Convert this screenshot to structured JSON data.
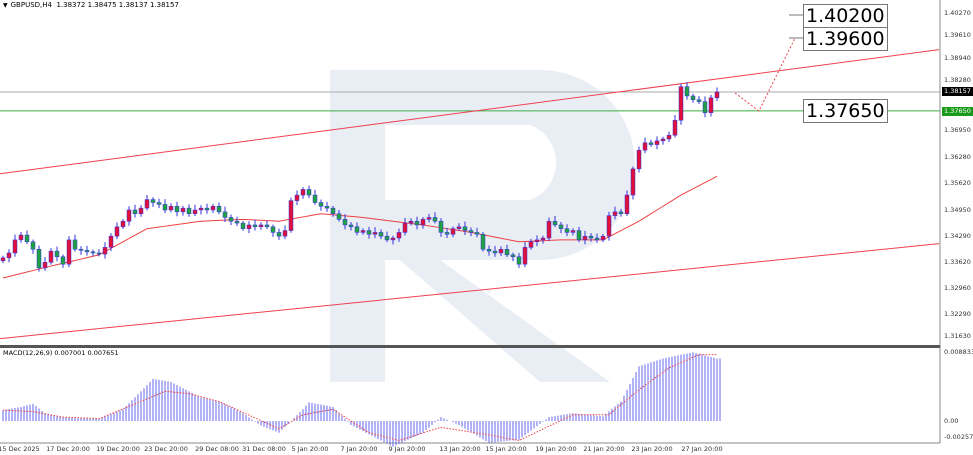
{
  "header": {
    "symbol": "GBPUSD,H4",
    "ohlc": "1.38372 1.38475 1.38137 1.38157"
  },
  "macd_header": {
    "label": "MACD(12,26,9) 0.007001 0.007651"
  },
  "price_axis": [
    "1.40270",
    "1.39610",
    "1.38940",
    "1.38280",
    "1.36950",
    "1.36280",
    "1.35620",
    "1.34950",
    "1.34290",
    "1.33620",
    "1.32960",
    "1.32290",
    "1.31630"
  ],
  "macd_axis": [
    "0.008833",
    "0.00",
    "-0.002572"
  ],
  "current_price": {
    "label": "1.38157",
    "value": 1.38157,
    "color": "#000000"
  },
  "support_level": {
    "label": "1.37650",
    "value": 1.3765,
    "color": "#1a9a1a"
  },
  "target_labels": [
    "1.40200",
    "1.39600",
    "1.37650"
  ],
  "colors": {
    "bull_body": "#e0103a",
    "bear_body": "#20a040",
    "wick": "#3333dd",
    "ma": "#f04040",
    "trendline": "#f04050",
    "macd_hist": "#6666ee",
    "macd_signal": "#f04040",
    "watermark": "#e9edf4"
  },
  "chart_data": {
    "type": "candlestick",
    "timeframe": "H4",
    "date_labels": [
      "15 Dec 2025",
      "17 Dec 20:00",
      "19 Dec 20:00",
      "23 Dec 20:00",
      "29 Dec 08:00",
      "31 Dec 08:00",
      "5 Jan 20:00",
      "7 Jan 20:00",
      "9 Jan 20:00",
      "13 Jan 20:00",
      "15 Jan 20:00",
      "19 Jan 20:00",
      "21 Jan 20:00",
      "23 Jan 20:00",
      "27 Jan 20:00"
    ],
    "ylim": [
      1.3163,
      1.4027
    ],
    "closes": [
      1.3372,
      1.3385,
      1.342,
      1.3433,
      1.3415,
      1.3395,
      1.3345,
      1.336,
      1.339,
      1.3375,
      1.3355,
      1.342,
      1.3395,
      1.3392,
      1.3388,
      1.3385,
      1.3382,
      1.34,
      1.343,
      1.3455,
      1.347,
      1.35,
      1.349,
      1.3505,
      1.3528,
      1.352,
      1.3515,
      1.35,
      1.351,
      1.3495,
      1.3505,
      1.349,
      1.35,
      1.3505,
      1.35,
      1.351,
      1.3495,
      1.348,
      1.347,
      1.3465,
      1.345,
      1.346,
      1.3455,
      1.346,
      1.3455,
      1.344,
      1.343,
      1.3445,
      1.3525,
      1.354,
      1.3555,
      1.354,
      1.352,
      1.351,
      1.3505,
      1.349,
      1.3475,
      1.346,
      1.3455,
      1.344,
      1.3445,
      1.3435,
      1.344,
      1.343,
      1.342,
      1.3425,
      1.344,
      1.3465,
      1.347,
      1.346,
      1.3475,
      1.348,
      1.347,
      1.344,
      1.3435,
      1.345,
      1.3455,
      1.3445,
      1.344,
      1.3435,
      1.3395,
      1.339,
      1.3385,
      1.3395,
      1.338,
      1.3375,
      1.3355,
      1.34,
      1.3415,
      1.342,
      1.3425,
      1.347,
      1.346,
      1.345,
      1.344,
      1.3445,
      1.342,
      1.343,
      1.3425,
      1.342,
      1.343,
      1.3485,
      1.3495,
      1.349,
      1.354,
      1.361,
      1.366,
      1.368,
      1.3675,
      1.3685,
      1.369,
      1.37,
      1.374,
      1.383,
      1.3805,
      1.3795,
      1.379,
      1.376,
      1.38,
      1.38157
    ],
    "moving_average": [
      [
        0,
        1.3318
      ],
      [
        8,
        1.335
      ],
      [
        16,
        1.338
      ],
      [
        24,
        1.345
      ],
      [
        33,
        1.347
      ],
      [
        40,
        1.3475
      ],
      [
        46,
        1.347
      ],
      [
        53,
        1.349
      ],
      [
        60,
        1.348
      ],
      [
        70,
        1.346
      ],
      [
        78,
        1.344
      ],
      [
        86,
        1.3415
      ],
      [
        93,
        1.342
      ],
      [
        100,
        1.342
      ],
      [
        106,
        1.347
      ],
      [
        113,
        1.354
      ],
      [
        119,
        1.359
      ]
    ],
    "trendlines": [
      {
        "from": [
          0,
          1.3597
        ],
        "to": [
          156,
          1.3929
        ]
      },
      {
        "from": [
          0,
          1.3156
        ],
        "to": [
          156,
          1.341
        ]
      }
    ],
    "forecast": [
      [
        122,
        1.3813
      ],
      [
        126,
        1.3765
      ],
      [
        132,
        1.396
      ]
    ],
    "macd_histogram": [
      [
        0,
        0.0014
      ],
      [
        3,
        0.0018
      ],
      [
        5,
        0.0022
      ],
      [
        7,
        0.001
      ],
      [
        10,
        0.0005
      ],
      [
        16,
        0.0003
      ],
      [
        20,
        0.0015
      ],
      [
        23,
        0.0038
      ],
      [
        25,
        0.0054
      ],
      [
        28,
        0.005
      ],
      [
        33,
        0.003
      ],
      [
        36,
        0.0025
      ],
      [
        40,
        0.001
      ],
      [
        43,
        -0.0006
      ],
      [
        46,
        -0.0015
      ],
      [
        50,
        0.0015
      ],
      [
        51,
        0.0024
      ],
      [
        55,
        0.0018
      ],
      [
        58,
        -0.0005
      ],
      [
        63,
        -0.0025
      ],
      [
        65,
        -0.0033
      ],
      [
        70,
        -0.0015
      ],
      [
        73,
        0.0005
      ],
      [
        76,
        -0.0005
      ],
      [
        81,
        -0.0028
      ],
      [
        86,
        -0.0024
      ],
      [
        91,
        0.0005
      ],
      [
        95,
        0.001
      ],
      [
        100,
        0.0006
      ],
      [
        103,
        0.0025
      ],
      [
        106,
        0.007
      ],
      [
        110,
        0.008
      ],
      [
        115,
        0.0088
      ],
      [
        119,
        0.008
      ]
    ],
    "macd_signal": [
      [
        0,
        0.0014
      ],
      [
        5,
        0.0012
      ],
      [
        10,
        0.0005
      ],
      [
        16,
        0.0003
      ],
      [
        23,
        0.0025
      ],
      [
        27,
        0.0038
      ],
      [
        31,
        0.0035
      ],
      [
        36,
        0.0025
      ],
      [
        46,
        -0.001
      ],
      [
        50,
        0.0008
      ],
      [
        55,
        0.0015
      ],
      [
        61,
        -0.0015
      ],
      [
        66,
        -0.0025
      ],
      [
        73,
        -0.0008
      ],
      [
        81,
        -0.0018
      ],
      [
        86,
        -0.0025
      ],
      [
        95,
        0.0008
      ],
      [
        101,
        0.0008
      ],
      [
        106,
        0.004
      ],
      [
        111,
        0.0068
      ],
      [
        116,
        0.0085
      ],
      [
        119,
        0.0085
      ]
    ],
    "macd_ylim": [
      -0.002572,
      0.008833
    ]
  }
}
